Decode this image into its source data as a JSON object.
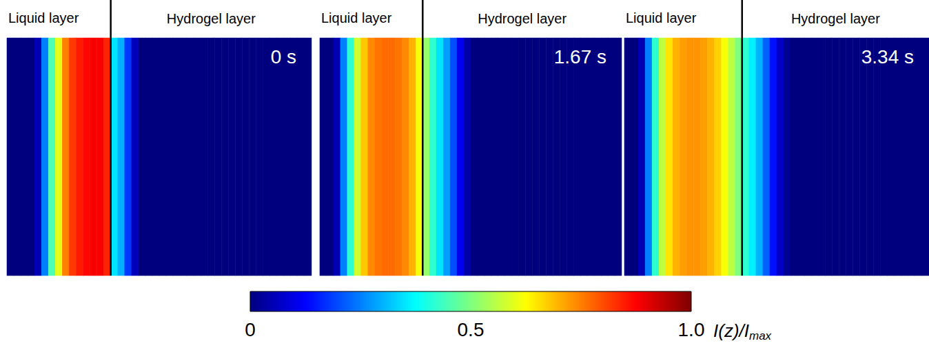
{
  "chart_data": {
    "type": "heatmap",
    "left_label": "Liquid layer",
    "right_label": "Hydrogel layer",
    "panels": [
      {
        "time": "0 s",
        "interface": 15,
        "values": [
          0,
          0,
          0,
          0,
          0.05,
          0.25,
          0.45,
          0.6,
          0.75,
          0.82,
          0.85,
          0.87,
          0.88,
          0.88,
          0.84,
          0.35,
          0.3,
          0.18,
          0.06,
          0,
          0,
          0,
          0,
          0,
          0,
          0,
          0,
          0,
          0,
          0,
          0,
          0,
          0,
          0,
          0,
          0,
          0,
          0,
          0,
          0,
          0,
          0,
          0,
          0
        ]
      },
      {
        "time": "1.67 s",
        "interface": 15,
        "values": [
          0,
          0,
          0.05,
          0.25,
          0.42,
          0.58,
          0.68,
          0.74,
          0.76,
          0.77,
          0.77,
          0.76,
          0.74,
          0.7,
          0.62,
          0.52,
          0.42,
          0.35,
          0.28,
          0.2,
          0.11,
          0.04,
          0,
          0,
          0,
          0,
          0,
          0,
          0,
          0,
          0,
          0,
          0,
          0,
          0,
          0,
          0,
          0,
          0,
          0,
          0,
          0,
          0,
          0
        ]
      },
      {
        "time": "3.34 s",
        "interface": 17,
        "values": [
          0,
          0,
          0.05,
          0.25,
          0.42,
          0.56,
          0.65,
          0.7,
          0.72,
          0.73,
          0.73,
          0.72,
          0.7,
          0.67,
          0.62,
          0.56,
          0.5,
          0.42,
          0.36,
          0.3,
          0.22,
          0.14,
          0.07,
          0.02,
          0,
          0,
          0,
          0,
          0,
          0,
          0,
          0,
          0,
          0,
          0,
          0,
          0,
          0,
          0,
          0,
          0,
          0,
          0,
          0
        ]
      }
    ],
    "colorbar": {
      "range": [
        0,
        1
      ],
      "ticks": [
        0,
        0.5,
        {
          "value": 1,
          "label": "1.0"
        }
      ],
      "label": "I(z)/Imax"
    }
  }
}
